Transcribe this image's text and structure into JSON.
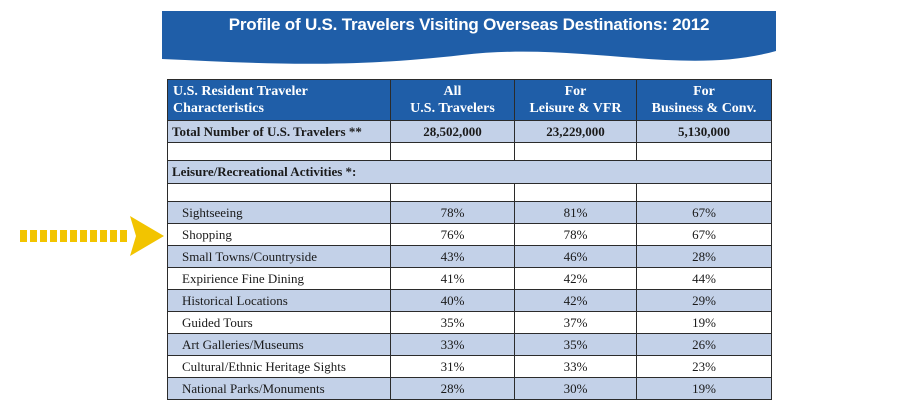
{
  "banner": {
    "title": "Profile of U.S. Travelers Visiting Overseas Destinations: 2012"
  },
  "colors": {
    "header_blue": "#1f5ea8",
    "row_shade": "#c3d1e8",
    "arrow": "#f2c400"
  },
  "table": {
    "headers": [
      [
        "U.S. Resident Traveler",
        "Characteristics"
      ],
      [
        "All",
        "U.S. Travelers"
      ],
      [
        "For",
        "Leisure & VFR"
      ],
      [
        "For",
        "Business & Conv."
      ]
    ],
    "total": {
      "label": "Total Number of U.S. Travelers **",
      "values": [
        "28,502,000",
        "23,229,000",
        "5,130,000"
      ]
    },
    "section_label": "Leisure/Recreational Activities *:",
    "rows": [
      {
        "label": "Sightseeing",
        "values": [
          "78%",
          "81%",
          "67%"
        ]
      },
      {
        "label": "Shopping",
        "values": [
          "76%",
          "78%",
          "67%"
        ]
      },
      {
        "label": "Small Towns/Countryside",
        "values": [
          "43%",
          "46%",
          "28%"
        ]
      },
      {
        "label": "Expirience Fine Dining",
        "values": [
          "41%",
          "42%",
          "44%"
        ]
      },
      {
        "label": "Historical Locations",
        "values": [
          "40%",
          "42%",
          "29%"
        ]
      },
      {
        "label": "Guided Tours",
        "values": [
          "35%",
          "37%",
          "19%"
        ]
      },
      {
        "label": "Art Galleries/Museums",
        "values": [
          "33%",
          "35%",
          "26%"
        ]
      },
      {
        "label": "Cultural/Ethnic Heritage Sights",
        "values": [
          "31%",
          "33%",
          "23%"
        ]
      },
      {
        "label": "National Parks/Monuments",
        "values": [
          "28%",
          "30%",
          "19%"
        ]
      }
    ]
  }
}
